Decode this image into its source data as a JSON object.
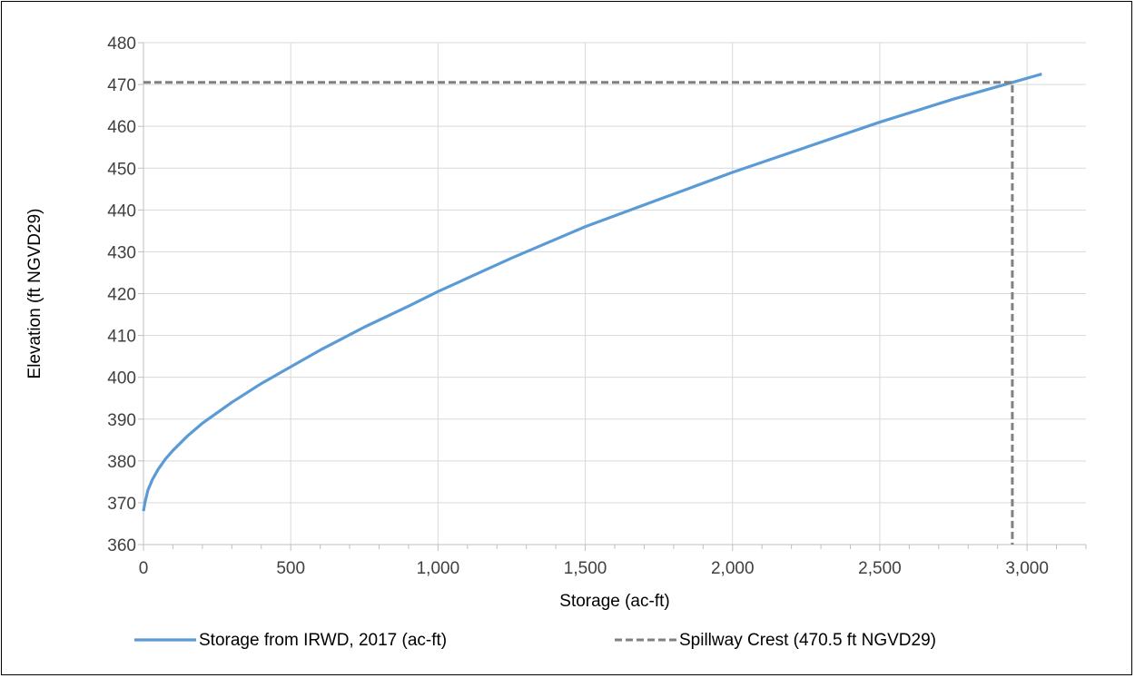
{
  "chart_data": {
    "type": "line",
    "xlabel": "Storage (ac-ft)",
    "ylabel": "Elevation (ft NGVD29)",
    "xlim": [
      0,
      3200
    ],
    "ylim": [
      360,
      480
    ],
    "x_ticks": [
      0,
      500,
      1000,
      1500,
      2000,
      2500,
      3000
    ],
    "x_tick_labels": [
      "0",
      "500",
      "1,000",
      "1,500",
      "2,000",
      "2,500",
      "3,000"
    ],
    "y_ticks": [
      360,
      370,
      380,
      390,
      400,
      410,
      420,
      430,
      440,
      450,
      460,
      470,
      480
    ],
    "y_tick_labels": [
      "360",
      "370",
      "380",
      "390",
      "400",
      "410",
      "420",
      "430",
      "440",
      "450",
      "460",
      "470",
      "480"
    ],
    "grid": true,
    "legend_position": "bottom",
    "series": [
      {
        "name": "Storage from IRWD, 2017 (ac-ft)",
        "color": "#5b9bd5",
        "style": "solid",
        "x": [
          0,
          5,
          15,
          30,
          50,
          75,
          100,
          150,
          200,
          250,
          300,
          400,
          500,
          600,
          750,
          900,
          1000,
          1250,
          1500,
          1750,
          2000,
          2250,
          2500,
          2750,
          2950,
          3050
        ],
        "y": [
          368,
          370,
          373,
          375.5,
          378,
          380.5,
          382.5,
          386,
          389,
          391.5,
          394,
          398.5,
          402.5,
          406.5,
          412,
          417,
          420.5,
          428.5,
          436,
          442.5,
          449,
          455,
          461,
          466.5,
          470.5,
          472.5
        ]
      },
      {
        "name": "Spillway Crest (470.5 ft NGVD29)",
        "color": "#808080",
        "style": "dashed",
        "x": [
          0,
          2950,
          2950
        ],
        "y": [
          470.5,
          470.5,
          360
        ]
      }
    ]
  }
}
